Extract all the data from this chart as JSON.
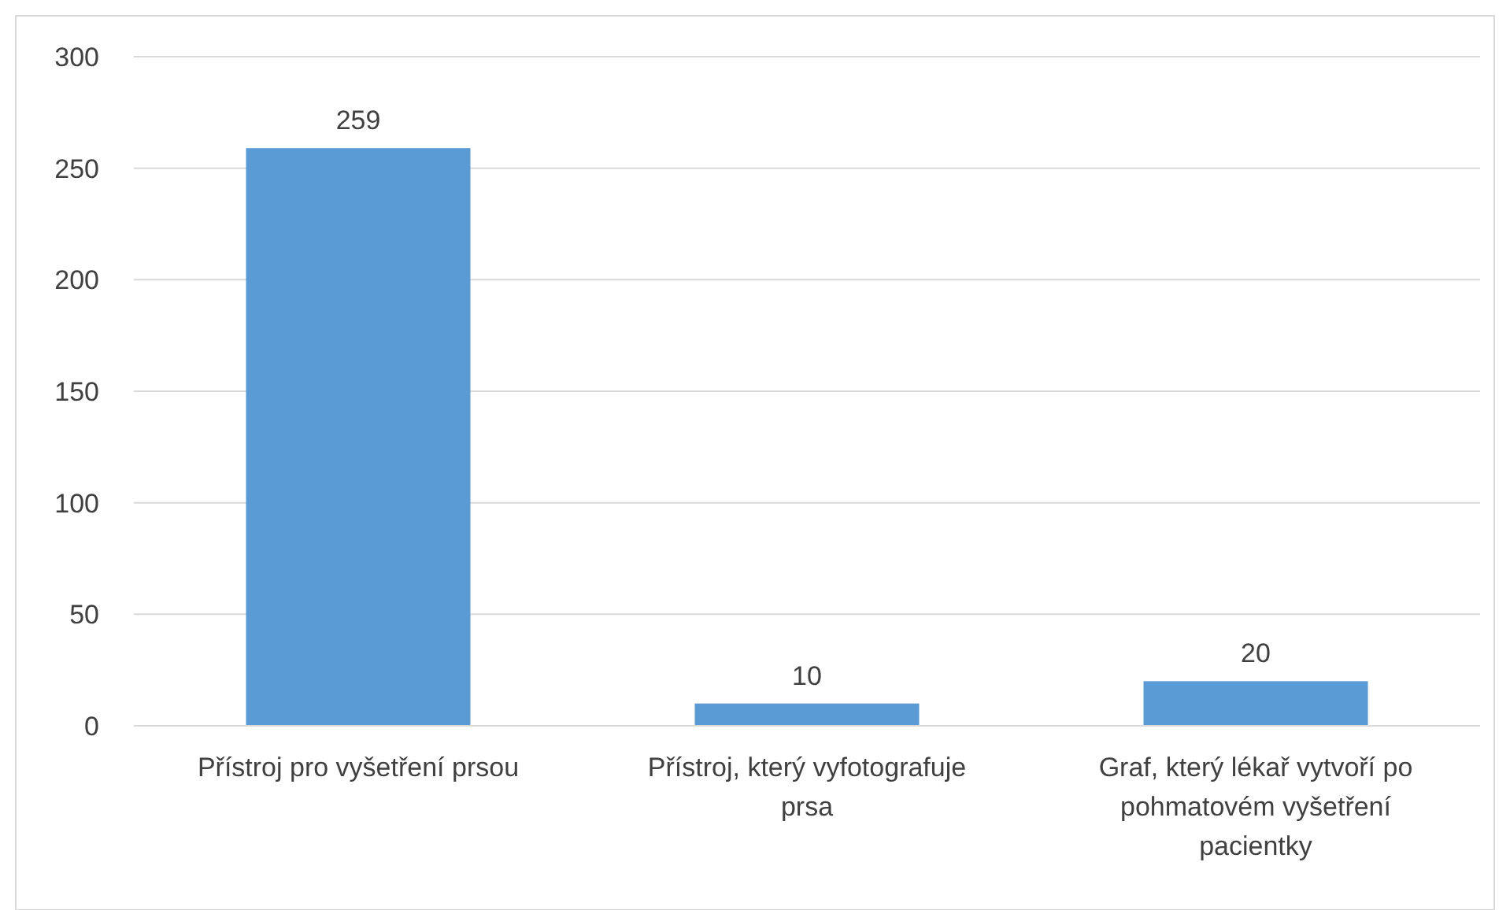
{
  "chart_data": {
    "type": "bar",
    "categories": [
      "Přístroj pro vyšetření prsou",
      "Přístroj, který vyfotografuje prsa",
      "Graf, který lékař vytvoří po pohmatovém vyšetření pacientky"
    ],
    "values": [
      259,
      10,
      20
    ],
    "color": "#5b9bd5",
    "ylim": [
      0,
      300
    ],
    "yticks": [
      0,
      50,
      100,
      150,
      200,
      250,
      300
    ],
    "grid": "y",
    "data_labels": true
  }
}
